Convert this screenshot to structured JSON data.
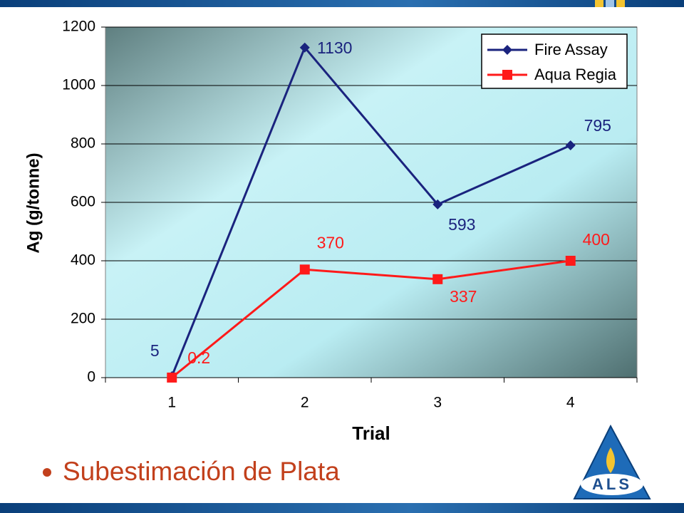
{
  "chart_data": {
    "type": "line",
    "y_label": "Ag (g/tonne)",
    "x_label": "Trial",
    "categories": [
      "1",
      "2",
      "3",
      "4"
    ],
    "series": [
      {
        "name": "Fire Assay",
        "color": "#1a237e",
        "marker": "diamond",
        "values": [
          5,
          1130,
          593,
          795
        ]
      },
      {
        "name": "Aqua Regia",
        "color": "#ff1a1a",
        "marker": "square",
        "values": [
          0.2,
          370,
          337,
          400
        ]
      }
    ],
    "ylim": [
      0,
      1200
    ],
    "yticks": [
      0,
      200,
      400,
      600,
      800,
      1000,
      1200
    ],
    "grid": true,
    "legend": "top-right"
  },
  "slide": {
    "bullet": "Subestimación de Plata",
    "logo": "ALS"
  }
}
